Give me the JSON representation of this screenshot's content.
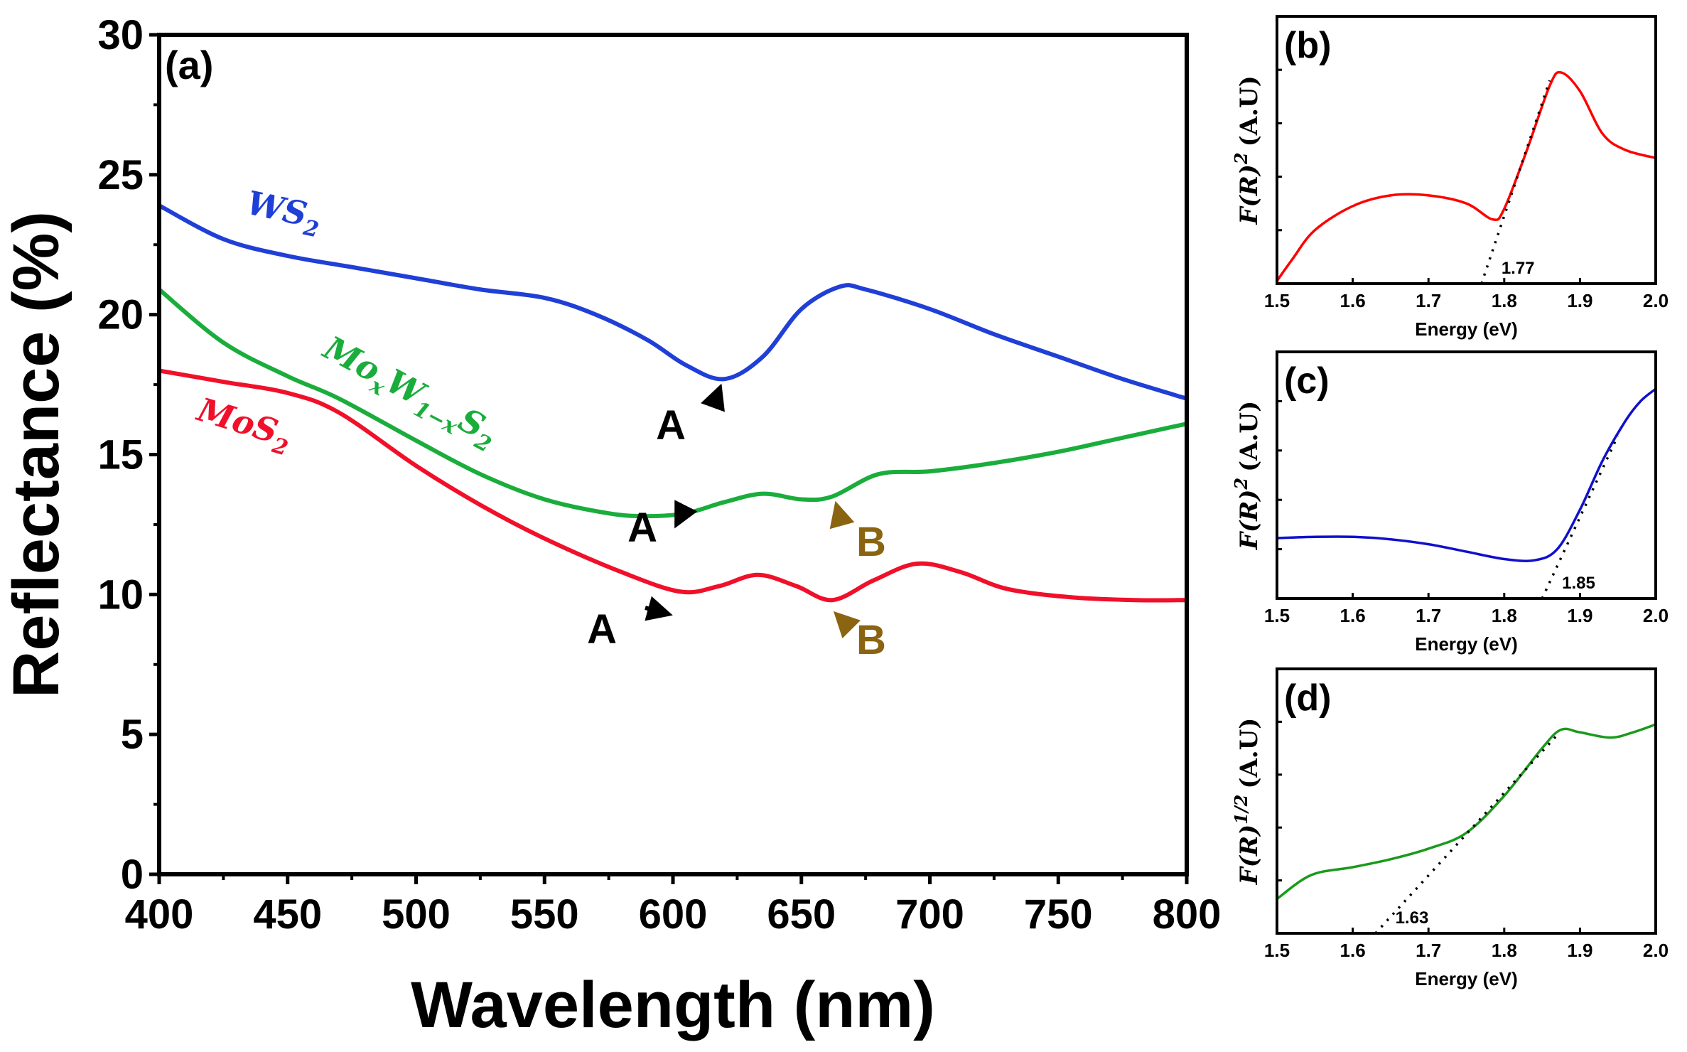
{
  "chart_data": [
    {
      "type": "line",
      "panel_label": "(a)",
      "xlabel": "Wavelength (nm)",
      "ylabel": "Reflectance (%)",
      "xlim": [
        400,
        800
      ],
      "ylim": [
        0,
        30
      ],
      "xticks": [
        400,
        450,
        500,
        550,
        600,
        650,
        700,
        750,
        800
      ],
      "yticks": [
        0,
        5,
        10,
        15,
        20,
        25,
        30
      ],
      "grid": false,
      "series": [
        {
          "name": "WS2",
          "label_main": "WS",
          "label_sub": "2",
          "color": "#1f3fd6",
          "x": [
            400,
            425,
            450,
            475,
            500,
            525,
            550,
            570,
            590,
            605,
            620,
            635,
            650,
            665,
            675,
            700,
            725,
            750,
            775,
            800
          ],
          "y": [
            23.9,
            22.7,
            22.1,
            21.7,
            21.3,
            20.9,
            20.6,
            20.0,
            19.1,
            18.2,
            17.7,
            18.5,
            20.2,
            21.0,
            20.9,
            20.2,
            19.3,
            18.5,
            17.7,
            17.0
          ]
        },
        {
          "name": "MoxW1-xS2",
          "label_main": "Mo",
          "label_sub1": "x",
          "label_mid": "W",
          "label_sub2": "1−x",
          "label_end": "S",
          "label_sub3": "2",
          "color": "#1aad3c",
          "x": [
            400,
            425,
            450,
            470,
            500,
            525,
            550,
            575,
            590,
            605,
            620,
            635,
            650,
            662,
            680,
            700,
            725,
            750,
            775,
            800
          ],
          "y": [
            20.9,
            19.0,
            17.8,
            17.0,
            15.5,
            14.3,
            13.4,
            12.9,
            12.8,
            12.9,
            13.3,
            13.6,
            13.4,
            13.5,
            14.3,
            14.4,
            14.7,
            15.1,
            15.6,
            16.1
          ]
        },
        {
          "name": "MoS2",
          "label_main": "MoS",
          "label_sub": "2",
          "color": "#f0102a",
          "x": [
            400,
            425,
            450,
            470,
            500,
            525,
            550,
            580,
            603,
            618,
            633,
            648,
            662,
            678,
            695,
            712,
            730,
            755,
            780,
            800
          ],
          "y": [
            18.0,
            17.6,
            17.2,
            16.5,
            14.6,
            13.2,
            12.0,
            10.8,
            10.1,
            10.3,
            10.7,
            10.3,
            9.8,
            10.5,
            11.1,
            10.8,
            10.2,
            9.9,
            9.8,
            9.8
          ]
        }
      ],
      "annotations": [
        {
          "text": "A",
          "color": "#000000",
          "target": [
            620,
            17.7
          ]
        },
        {
          "text": "A",
          "color": "#000000",
          "target": [
            603,
            12.8
          ]
        },
        {
          "text": "B",
          "color": "#8a6410",
          "target": [
            662,
            13.5
          ]
        },
        {
          "text": "A",
          "color": "#000000",
          "target": [
            600,
            9.6
          ]
        },
        {
          "text": "B",
          "color": "#8a6410",
          "target": [
            662,
            9.6
          ]
        }
      ]
    },
    {
      "type": "line",
      "panel_label": "(b)",
      "xlabel": "Energy (eV)",
      "ylabel_main": "F(R)",
      "ylabel_exp": "2",
      "ylabel_unit": "(A.U)",
      "xlim": [
        1.5,
        2.0
      ],
      "ylim": [
        0,
        1
      ],
      "xticks": [
        "1.5",
        "1.6",
        "1.7",
        "1.8",
        "1.9",
        "2.0"
      ],
      "grid": false,
      "color": "#ff0000",
      "x": [
        1.5,
        1.52,
        1.55,
        1.6,
        1.65,
        1.7,
        1.75,
        1.785,
        1.8,
        1.83,
        1.86,
        1.875,
        1.9,
        1.93,
        1.96,
        2.0
      ],
      "y": [
        0.01,
        0.09,
        0.2,
        0.29,
        0.33,
        0.33,
        0.3,
        0.24,
        0.28,
        0.5,
        0.74,
        0.79,
        0.72,
        0.56,
        0.5,
        0.47
      ],
      "tangent": {
        "x": [
          1.77,
          1.86
        ],
        "y": [
          0,
          0.76
        ]
      },
      "bandgap_label": "1.77"
    },
    {
      "type": "line",
      "panel_label": "(c)",
      "xlabel": "Energy (eV)",
      "ylabel_main": "F(R)",
      "ylabel_exp": "2",
      "ylabel_unit": "(A.U)",
      "xlim": [
        1.5,
        2.0
      ],
      "ylim": [
        0,
        1
      ],
      "xticks": [
        "1.5",
        "1.6",
        "1.7",
        "1.8",
        "1.9",
        "2.0"
      ],
      "grid": false,
      "color": "#1010cc",
      "x": [
        1.5,
        1.55,
        1.6,
        1.65,
        1.7,
        1.75,
        1.8,
        1.84,
        1.87,
        1.9,
        1.93,
        1.96,
        1.98,
        2.0
      ],
      "y": [
        0.245,
        0.25,
        0.25,
        0.24,
        0.22,
        0.19,
        0.16,
        0.155,
        0.2,
        0.36,
        0.56,
        0.72,
        0.8,
        0.85
      ],
      "tangent": {
        "x": [
          1.85,
          1.95
        ],
        "y": [
          0,
          0.66
        ]
      },
      "bandgap_label": "1.85"
    },
    {
      "type": "line",
      "panel_label": "(d)",
      "xlabel": "Energy (eV)",
      "ylabel_main": "F(R)",
      "ylabel_exp": "1/2",
      "ylabel_unit": "(A.U)",
      "xlim": [
        1.5,
        2.0
      ],
      "ylim": [
        0,
        1
      ],
      "xticks": [
        "1.5",
        "1.6",
        "1.7",
        "1.8",
        "1.9",
        "2.0"
      ],
      "grid": false,
      "color": "#1a9a1a",
      "x": [
        1.5,
        1.545,
        1.6,
        1.65,
        1.7,
        1.75,
        1.8,
        1.85,
        1.875,
        1.9,
        1.94,
        1.97,
        2.0
      ],
      "y": [
        0.13,
        0.22,
        0.25,
        0.28,
        0.32,
        0.38,
        0.52,
        0.7,
        0.77,
        0.76,
        0.74,
        0.76,
        0.79
      ],
      "tangent": {
        "x": [
          1.63,
          1.87
        ],
        "y": [
          0,
          0.75
        ]
      },
      "bandgap_label": "1.63"
    }
  ]
}
